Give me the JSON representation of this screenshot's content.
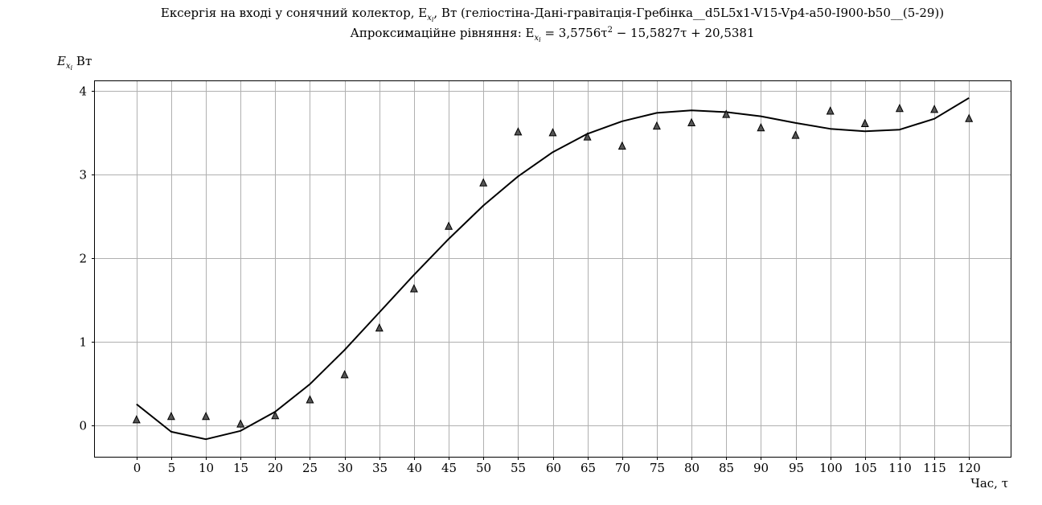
{
  "chart_data": {
    "type": "scatter",
    "title_line1": "Ексергія на вході у сонячний колектор, E",
    "title_line1_sub": "x",
    "title_line1_subsub": "i",
    "title_line1_rest": ", Вт (геліостіна-Дані-гравітація-Гребінка__d5L5x1-V15-Vp4-a50-I900-b50__(5-29))",
    "title_line2_prefix": "Апроксимаційне рівняння: E",
    "title_line2_sub": "x",
    "title_line2_subsub": "i",
    "title_line2_eq": " = 3,5756τ",
    "title_line2_sup": "2",
    "title_line2_rest": " − 15,5827τ + 20,5381",
    "ylabel": "E",
    "ylabel_sub": "x",
    "ylabel_subsub": "i",
    "ylabel_unit": " Вт",
    "xlabel": "Час, τ",
    "xlim": [
      -6,
      126
    ],
    "ylim": [
      -0.38,
      4.12
    ],
    "xticks": [
      0,
      5,
      10,
      15,
      20,
      25,
      30,
      35,
      40,
      45,
      50,
      55,
      60,
      65,
      70,
      75,
      80,
      85,
      90,
      95,
      100,
      105,
      110,
      115,
      120
    ],
    "yticks": [
      0,
      1,
      2,
      3,
      4
    ],
    "grid": true,
    "series": [
      {
        "kind": "markers",
        "marker": "triangle",
        "color": "#555555",
        "x": [
          0,
          5,
          10,
          15,
          20,
          25,
          30,
          35,
          40,
          45,
          50,
          55,
          60,
          65,
          70,
          75,
          80,
          85,
          90,
          95,
          100,
          105,
          110,
          115,
          120
        ],
        "y": [
          0.06,
          0.1,
          0.1,
          0.01,
          0.11,
          0.3,
          0.6,
          1.16,
          1.63,
          2.38,
          2.9,
          3.51,
          3.5,
          3.45,
          3.34,
          3.58,
          3.62,
          3.72,
          3.56,
          3.47,
          3.76,
          3.61,
          3.79,
          3.78,
          3.67
        ]
      },
      {
        "kind": "line",
        "color": "#000000",
        "x": [
          0,
          5,
          10,
          15,
          20,
          25,
          30,
          35,
          40,
          45,
          50,
          55,
          60,
          65,
          70,
          75,
          80,
          85,
          90,
          95,
          100,
          105,
          110,
          115,
          120
        ],
        "y": [
          0.25,
          -0.08,
          -0.17,
          -0.07,
          0.16,
          0.49,
          0.9,
          1.35,
          1.8,
          2.23,
          2.63,
          2.98,
          3.27,
          3.49,
          3.64,
          3.74,
          3.77,
          3.75,
          3.7,
          3.62,
          3.55,
          3.52,
          3.54,
          3.67,
          3.92
        ]
      }
    ]
  }
}
